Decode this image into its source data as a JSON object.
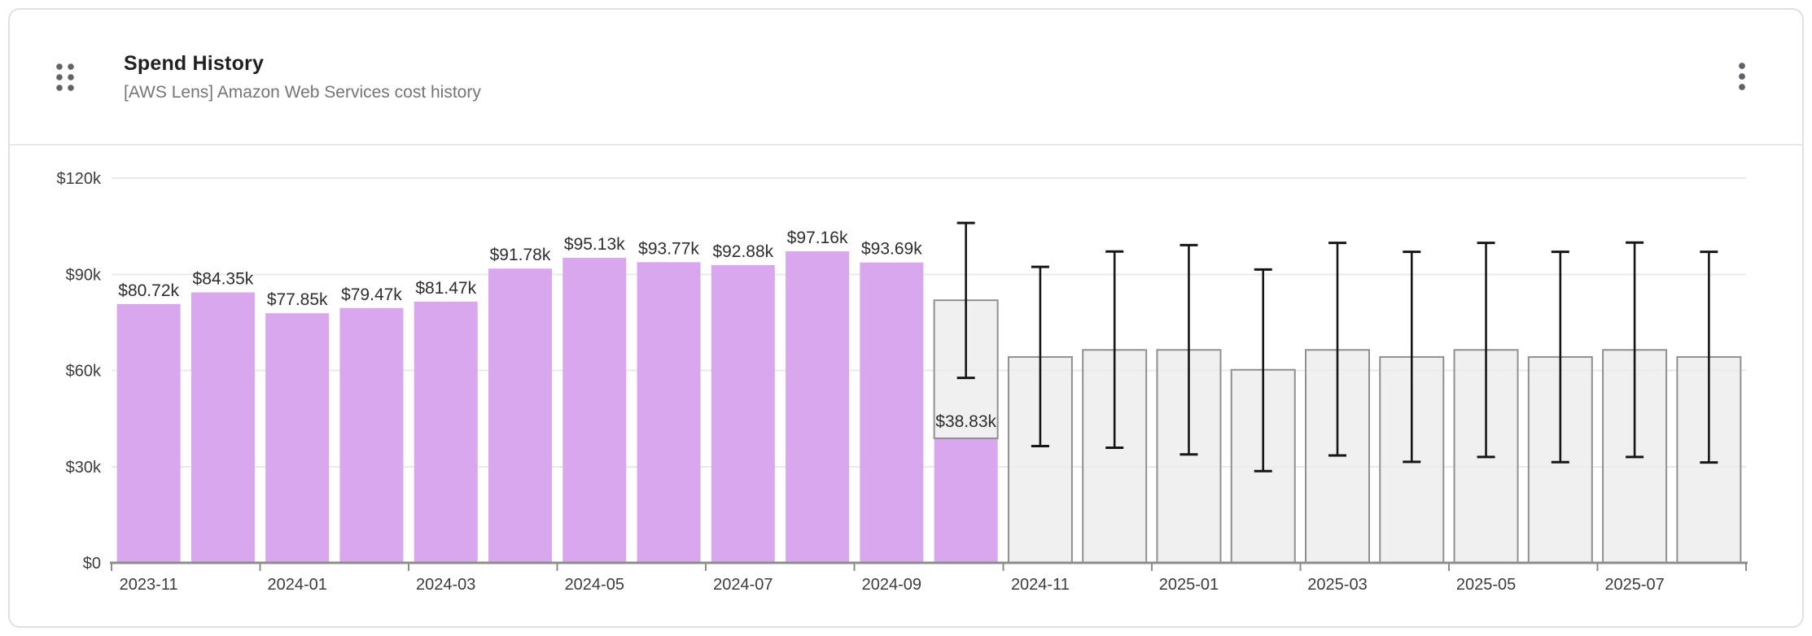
{
  "card": {
    "title": "Spend History",
    "subtitle": "[AWS Lens] Amazon Web Services cost history"
  },
  "icons": {
    "drag_handle": "drag-handle-dots",
    "menu": "kebab-vertical-dots"
  },
  "colors": {
    "actual_bar": "#d9a7ee",
    "forecast_bar_fill": "#ececec",
    "forecast_bar_border": "#909090",
    "whisker": "#161616",
    "gridline": "#e9e9e9",
    "axis_line": "#8d8d8d",
    "axis_label": "#3c3c3c",
    "data_label": "#2e2e2e",
    "card_border": "#e1e1e1",
    "title_text": "#202124",
    "subtitle_text": "#757575",
    "icon_dots": "#5f6368"
  },
  "chart_data": {
    "type": "bar",
    "title": "Spend History",
    "xlabel": "",
    "ylabel": "",
    "ylim": [
      0,
      120000
    ],
    "grid": true,
    "legend": "none",
    "unit": "USD thousands",
    "y_ticks_k": [
      0,
      30,
      60,
      90,
      120
    ],
    "y_tick_labels": [
      "$0",
      "$30k",
      "$60k",
      "$90k",
      "$120k"
    ],
    "x_tick_labels": [
      "2023-11",
      "2024-01",
      "2024-03",
      "2024-05",
      "2024-07",
      "2024-09",
      "2024-11",
      "2025-01",
      "2025-03",
      "2025-05",
      "2025-07"
    ],
    "series_semantics": "actual = solid purple bar with printed label; forecast = hollow gray bar with black min/max whisker",
    "months": [
      {
        "month": "2023-11",
        "type": "actual",
        "value_k": 80.72,
        "label": "$80.72k"
      },
      {
        "month": "2023-12",
        "type": "actual",
        "value_k": 84.35,
        "label": "$84.35k"
      },
      {
        "month": "2024-01",
        "type": "actual",
        "value_k": 77.85,
        "label": "$77.85k"
      },
      {
        "month": "2024-02",
        "type": "actual",
        "value_k": 79.47,
        "label": "$79.47k"
      },
      {
        "month": "2024-03",
        "type": "actual",
        "value_k": 81.47,
        "label": "$81.47k"
      },
      {
        "month": "2024-04",
        "type": "actual",
        "value_k": 91.78,
        "label": "$91.78k"
      },
      {
        "month": "2024-05",
        "type": "actual",
        "value_k": 95.13,
        "label": "$95.13k"
      },
      {
        "month": "2024-06",
        "type": "actual",
        "value_k": 93.77,
        "label": "$93.77k"
      },
      {
        "month": "2024-07",
        "type": "actual",
        "value_k": 92.88,
        "label": "$92.88k"
      },
      {
        "month": "2024-08",
        "type": "actual",
        "value_k": 97.16,
        "label": "$97.16k"
      },
      {
        "month": "2024-09",
        "type": "actual",
        "value_k": 93.69,
        "label": "$93.69k"
      },
      {
        "month": "2024-10",
        "type": "actual_plus_forecast",
        "actual_k": 38.83,
        "label": "$38.83k",
        "forecast_k": 81.9,
        "lo_k": 57.7,
        "hi_k": 106.0
      },
      {
        "month": "2024-11",
        "type": "forecast",
        "forecast_k": 64.2,
        "lo_k": 36.4,
        "hi_k": 92.3
      },
      {
        "month": "2024-12",
        "type": "forecast",
        "forecast_k": 66.4,
        "lo_k": 35.9,
        "hi_k": 97.1
      },
      {
        "month": "2025-01",
        "type": "forecast",
        "forecast_k": 66.4,
        "lo_k": 33.8,
        "hi_k": 99.1
      },
      {
        "month": "2025-02",
        "type": "forecast",
        "forecast_k": 60.2,
        "lo_k": 28.6,
        "hi_k": 91.5
      },
      {
        "month": "2025-03",
        "type": "forecast",
        "forecast_k": 66.4,
        "lo_k": 33.5,
        "hi_k": 99.8
      },
      {
        "month": "2025-04",
        "type": "forecast",
        "forecast_k": 64.2,
        "lo_k": 31.5,
        "hi_k": 97.0
      },
      {
        "month": "2025-05",
        "type": "forecast",
        "forecast_k": 66.4,
        "lo_k": 33.0,
        "hi_k": 99.8
      },
      {
        "month": "2025-06",
        "type": "forecast",
        "forecast_k": 64.2,
        "lo_k": 31.4,
        "hi_k": 97.0
      },
      {
        "month": "2025-07",
        "type": "forecast",
        "forecast_k": 66.4,
        "lo_k": 33.0,
        "hi_k": 99.9
      },
      {
        "month": "2025-08",
        "type": "forecast",
        "forecast_k": 64.2,
        "lo_k": 31.3,
        "hi_k": 97.0
      }
    ]
  }
}
